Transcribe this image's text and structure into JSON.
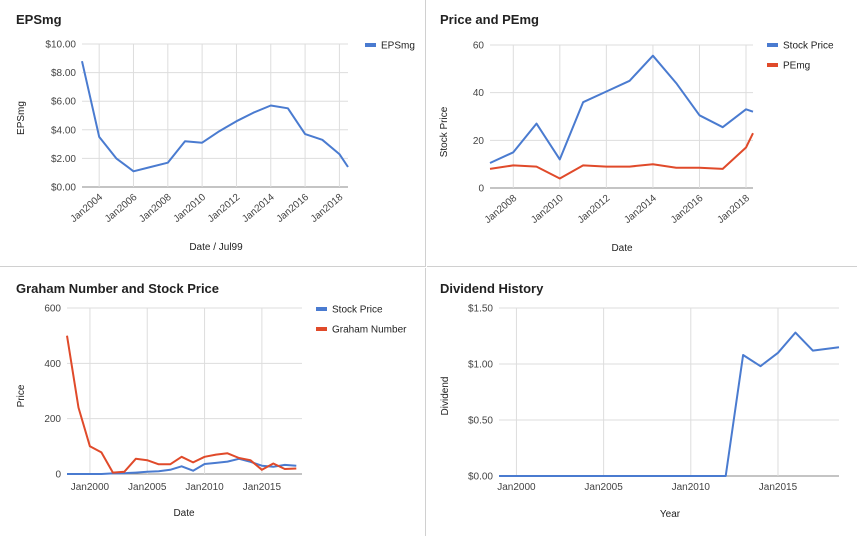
{
  "colors": {
    "blue": "#4a7bd0",
    "red": "#e04a2a",
    "grid": "#dddddd",
    "axis": "#888888"
  },
  "chart_data": [
    {
      "type": "line",
      "title": "EPSmg",
      "xlabel": "Date / Jul99",
      "ylabel": "EPSmg",
      "x_ticks": [
        "Jan2004",
        "Jan2006",
        "Jan2008",
        "Jan2010",
        "Jan2012",
        "Jan2014",
        "Jan2016",
        "Jan2018"
      ],
      "x_tick_values": [
        2004,
        2006,
        2008,
        2010,
        2012,
        2014,
        2016,
        2018
      ],
      "y_ticks": [
        "$0.00",
        "$2.00",
        "$4.00",
        "$6.00",
        "$8.00",
        "$10.00"
      ],
      "y_tick_values": [
        0,
        2,
        4,
        6,
        8,
        10
      ],
      "xlim": [
        2003,
        2018.5
      ],
      "ylim": [
        0,
        10
      ],
      "grid": true,
      "legend": "right",
      "series": [
        {
          "name": "EPSmg",
          "color": "#4a7bd0",
          "x": [
            2003,
            2004,
            2005,
            2006,
            2007,
            2008,
            2009,
            2010,
            2011,
            2012,
            2013,
            2014,
            2015,
            2016,
            2017,
            2018,
            2018.5
          ],
          "y": [
            8.8,
            3.5,
            2.0,
            1.1,
            1.4,
            1.7,
            3.2,
            3.1,
            3.9,
            4.6,
            5.2,
            5.7,
            5.5,
            3.7,
            3.3,
            2.3,
            1.4
          ]
        }
      ]
    },
    {
      "type": "line",
      "title": "Price and PEmg",
      "xlabel": "Date",
      "ylabel": "Stock Price",
      "x_ticks": [
        "Jan2008",
        "Jan2010",
        "Jan2012",
        "Jan2014",
        "Jan2016",
        "Jan2018"
      ],
      "x_tick_values": [
        2008,
        2010,
        2012,
        2014,
        2016,
        2018
      ],
      "y_ticks": [
        "0",
        "20",
        "40",
        "60"
      ],
      "y_tick_values": [
        0,
        20,
        40,
        60
      ],
      "xlim": [
        2007,
        2018.3
      ],
      "ylim": [
        0,
        60
      ],
      "grid": true,
      "legend": "right",
      "series": [
        {
          "name": "Stock Price",
          "color": "#4a7bd0",
          "x": [
            2007,
            2008,
            2009,
            2010,
            2011,
            2012,
            2013,
            2014,
            2015,
            2016,
            2017,
            2018,
            2018.3
          ],
          "y": [
            10.5,
            15,
            27,
            12,
            36,
            40.5,
            45,
            55.5,
            44,
            30.5,
            25.5,
            33,
            32
          ]
        },
        {
          "name": "PEmg",
          "color": "#e04a2a",
          "x": [
            2007,
            2008,
            2009,
            2010,
            2011,
            2012,
            2013,
            2014,
            2015,
            2016,
            2017,
            2018,
            2018.3
          ],
          "y": [
            8,
            9.5,
            9,
            4,
            9.5,
            9,
            9,
            10,
            8.5,
            8.5,
            8,
            17,
            23
          ]
        }
      ]
    },
    {
      "type": "line",
      "title": "Graham Number and Stock Price",
      "xlabel": "Date",
      "ylabel": "Price",
      "x_ticks": [
        "Jan2000",
        "Jan2005",
        "Jan2010",
        "Jan2015"
      ],
      "x_tick_values": [
        2000,
        2005,
        2010,
        2015
      ],
      "y_ticks": [
        "0",
        "200",
        "400",
        "600"
      ],
      "y_tick_values": [
        0,
        200,
        400,
        600
      ],
      "xlim": [
        1998,
        2018.5
      ],
      "ylim": [
        0,
        600
      ],
      "grid": true,
      "legend": "right",
      "series": [
        {
          "name": "Stock Price",
          "color": "#4a7bd0",
          "x": [
            1998,
            1999,
            2000,
            2001,
            2002,
            2003,
            2004,
            2005,
            2006,
            2007,
            2008,
            2009,
            2010,
            2011,
            2012,
            2013,
            2014,
            2015,
            2016,
            2017,
            2018
          ],
          "y": [
            0,
            0,
            0,
            0,
            2,
            3,
            5,
            8,
            10,
            15,
            28,
            12,
            36,
            40,
            45,
            55,
            44,
            30,
            26,
            33,
            30
          ]
        },
        {
          "name": "Graham Number",
          "color": "#e04a2a",
          "x": [
            1998,
            1999,
            2000,
            2001,
            2002,
            2003,
            2004,
            2005,
            2006,
            2007,
            2008,
            2009,
            2010,
            2011,
            2012,
            2013,
            2014,
            2015,
            2016,
            2017,
            2018
          ],
          "y": [
            500,
            240,
            100,
            78,
            5,
            8,
            55,
            50,
            35,
            35,
            62,
            42,
            62,
            70,
            75,
            58,
            50,
            15,
            38,
            18,
            20
          ]
        }
      ]
    },
    {
      "type": "line",
      "title": "Dividend History",
      "xlabel": "Year",
      "ylabel": "Dividend",
      "x_ticks": [
        "Jan2000",
        "Jan2005",
        "Jan2010",
        "Jan2015"
      ],
      "x_tick_values": [
        2000,
        2005,
        2010,
        2015
      ],
      "y_ticks": [
        "$0.00",
        "$0.50",
        "$1.00",
        "$1.50"
      ],
      "y_tick_values": [
        0,
        0.5,
        1.0,
        1.5
      ],
      "xlim": [
        1999,
        2018.5
      ],
      "ylim": [
        0,
        1.5
      ],
      "grid": true,
      "legend": "none",
      "series": [
        {
          "name": "",
          "color": "#4a7bd0",
          "x": [
            1999,
            2012,
            2013,
            2014,
            2015,
            2016,
            2017,
            2018.5
          ],
          "y": [
            0,
            0,
            1.08,
            0.98,
            1.1,
            1.28,
            1.12,
            1.15
          ]
        }
      ]
    }
  ]
}
